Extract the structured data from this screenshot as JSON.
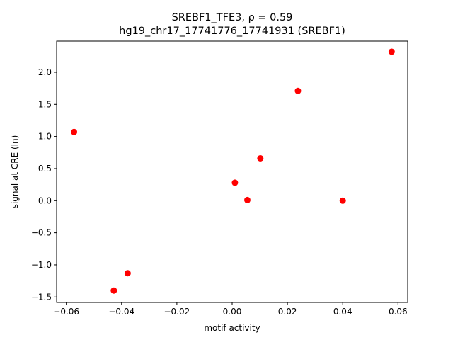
{
  "chart_data": {
    "type": "scatter",
    "title_line1": "SREBF1_TFE3, ρ = 0.59",
    "title_line2": "hg19_chr17_17741776_17741931 (SREBF1)",
    "xlabel": "motif activity",
    "ylabel": "signal at CRE (ln)",
    "xlim": [
      -0.0635,
      0.0635
    ],
    "ylim": [
      -1.585,
      2.485
    ],
    "xticks": [
      -0.06,
      -0.04,
      -0.02,
      0.0,
      0.02,
      0.04,
      0.06
    ],
    "xtick_labels": [
      "−0.06",
      "−0.04",
      "−0.02",
      "0.00",
      "0.02",
      "0.04",
      "0.06"
    ],
    "yticks": [
      -1.5,
      -1.0,
      -0.5,
      0.0,
      0.5,
      1.0,
      1.5,
      2.0
    ],
    "ytick_labels": [
      "−1.5",
      "−1.0",
      "−0.5",
      "0.0",
      "0.5",
      "1.0",
      "1.5",
      "2.0"
    ],
    "marker_color": "#ff0000",
    "grid": false,
    "points": [
      {
        "x": -0.0572,
        "y": 1.07
      },
      {
        "x": -0.0428,
        "y": -1.4
      },
      {
        "x": -0.0378,
        "y": -1.13
      },
      {
        "x": 0.001,
        "y": 0.28
      },
      {
        "x": 0.0055,
        "y": 0.01
      },
      {
        "x": 0.0102,
        "y": 0.66
      },
      {
        "x": 0.0238,
        "y": 1.71
      },
      {
        "x": 0.04,
        "y": 0.0
      },
      {
        "x": 0.0577,
        "y": 2.32
      }
    ]
  }
}
